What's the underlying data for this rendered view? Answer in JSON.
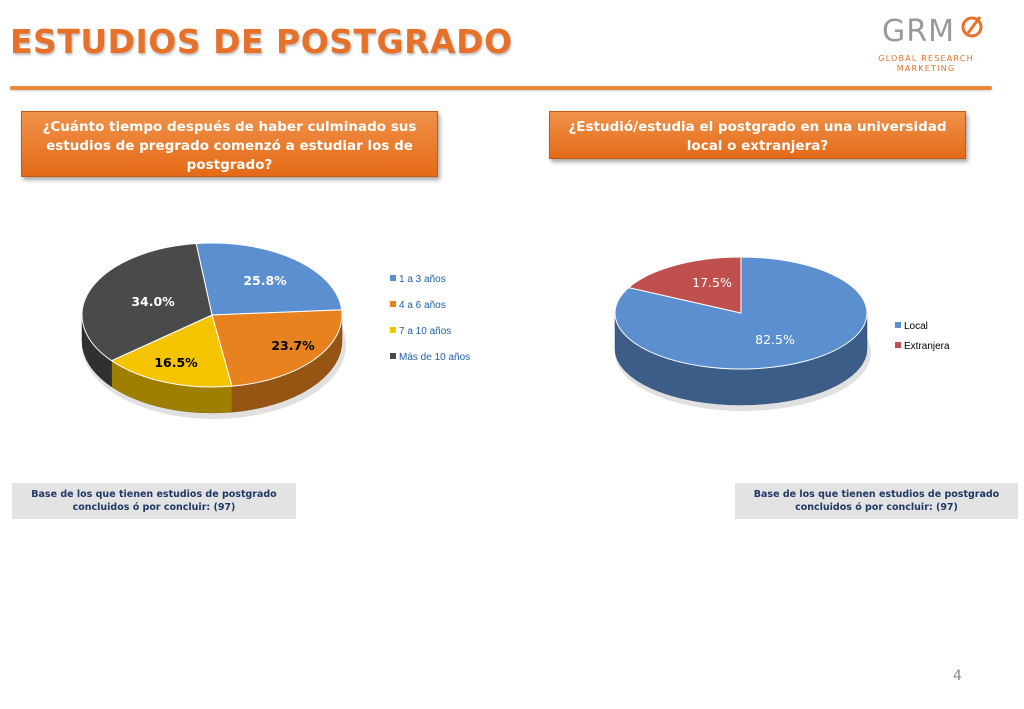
{
  "slide": {
    "title": "ESTUDIOS DE POSTGRADO",
    "page_number": "4"
  },
  "logo": {
    "text": "GRM",
    "subtitle_line1": "GLOBAL RESEARCH",
    "subtitle_line2": "MARKETING"
  },
  "colors": {
    "accent": "#e8712a",
    "blue": "#5b8fcf",
    "orange": "#e8821e",
    "yellow": "#f5c400",
    "dark": "#4a4a4a",
    "red": "#c0504d",
    "navy_text": "#1f3864"
  },
  "questions": {
    "q1": "¿Cuánto tiempo después de haber culminado sus estudios de pregrado comenzó a estudiar los de postgrado?",
    "q2": "¿Estudió/estudia el postgrado en una universidad local o extranjera?"
  },
  "notes": {
    "n1": "Base de los que tienen estudios de postgrado concluidos ó por concluir: (97)",
    "n2": "Base de los que tienen estudios de postgrado concluidos ó por concluir: (97)"
  },
  "chart_data": [
    {
      "type": "pie",
      "title": "",
      "legend_position": "right",
      "categories": [
        "1 a 3 años",
        "4 a 6 años",
        "7 a 10 años",
        "Más de 10 años"
      ],
      "values": [
        25.8,
        23.7,
        16.5,
        34.0
      ],
      "labels": [
        "25.8%",
        "23.7%",
        "16.5%",
        "34.0%"
      ],
      "colors": [
        "#5b8fcf",
        "#e8821e",
        "#f5c400",
        "#4a4a4a"
      ]
    },
    {
      "type": "pie",
      "title": "",
      "legend_position": "right",
      "categories": [
        "Local",
        "Extranjera"
      ],
      "values": [
        82.5,
        17.5
      ],
      "labels": [
        "82.5%",
        "17.5%"
      ],
      "colors": [
        "#5b8fcf",
        "#c0504d"
      ]
    }
  ]
}
